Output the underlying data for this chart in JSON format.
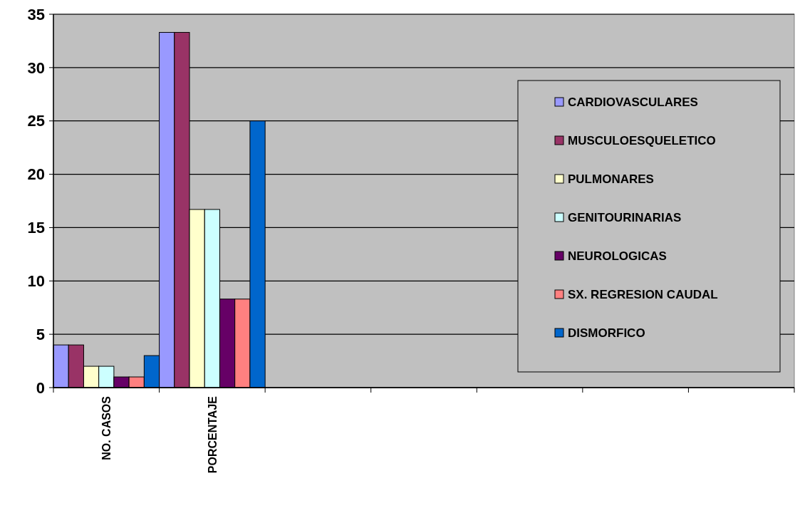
{
  "chart_data": {
    "type": "bar",
    "categories": [
      "NO. CASOS",
      "PORCENTAJE",
      null,
      null,
      null,
      null,
      null
    ],
    "series": [
      {
        "name": "CARDIOVASCULARES",
        "color": "#9999ff",
        "values": [
          4,
          33.3,
          null,
          null,
          null,
          null,
          null
        ]
      },
      {
        "name": "MUSCULOESQUELETICO",
        "color": "#993366",
        "values": [
          4,
          33.3,
          null,
          null,
          null,
          null,
          null
        ]
      },
      {
        "name": "PULMONARES",
        "color": "#ffffcc",
        "values": [
          2,
          16.7,
          null,
          null,
          null,
          null,
          null
        ]
      },
      {
        "name": "GENITOURINARIAS",
        "color": "#ccffff",
        "values": [
          2,
          16.7,
          null,
          null,
          null,
          null,
          null
        ]
      },
      {
        "name": "NEUROLOGICAS",
        "color": "#660066",
        "values": [
          1,
          8.3,
          null,
          null,
          null,
          null,
          null
        ]
      },
      {
        "name": "SX. REGRESION CAUDAL",
        "color": "#ff8080",
        "values": [
          1,
          8.3,
          null,
          null,
          null,
          null,
          null
        ]
      },
      {
        "name": "DISMORFICO",
        "color": "#0066cc",
        "values": [
          3,
          25,
          null,
          null,
          null,
          null,
          null
        ]
      }
    ],
    "ylim": [
      0,
      35
    ],
    "yticks": [
      0,
      5,
      10,
      15,
      20,
      25,
      30,
      35
    ],
    "grid": "y",
    "legend": "right"
  }
}
